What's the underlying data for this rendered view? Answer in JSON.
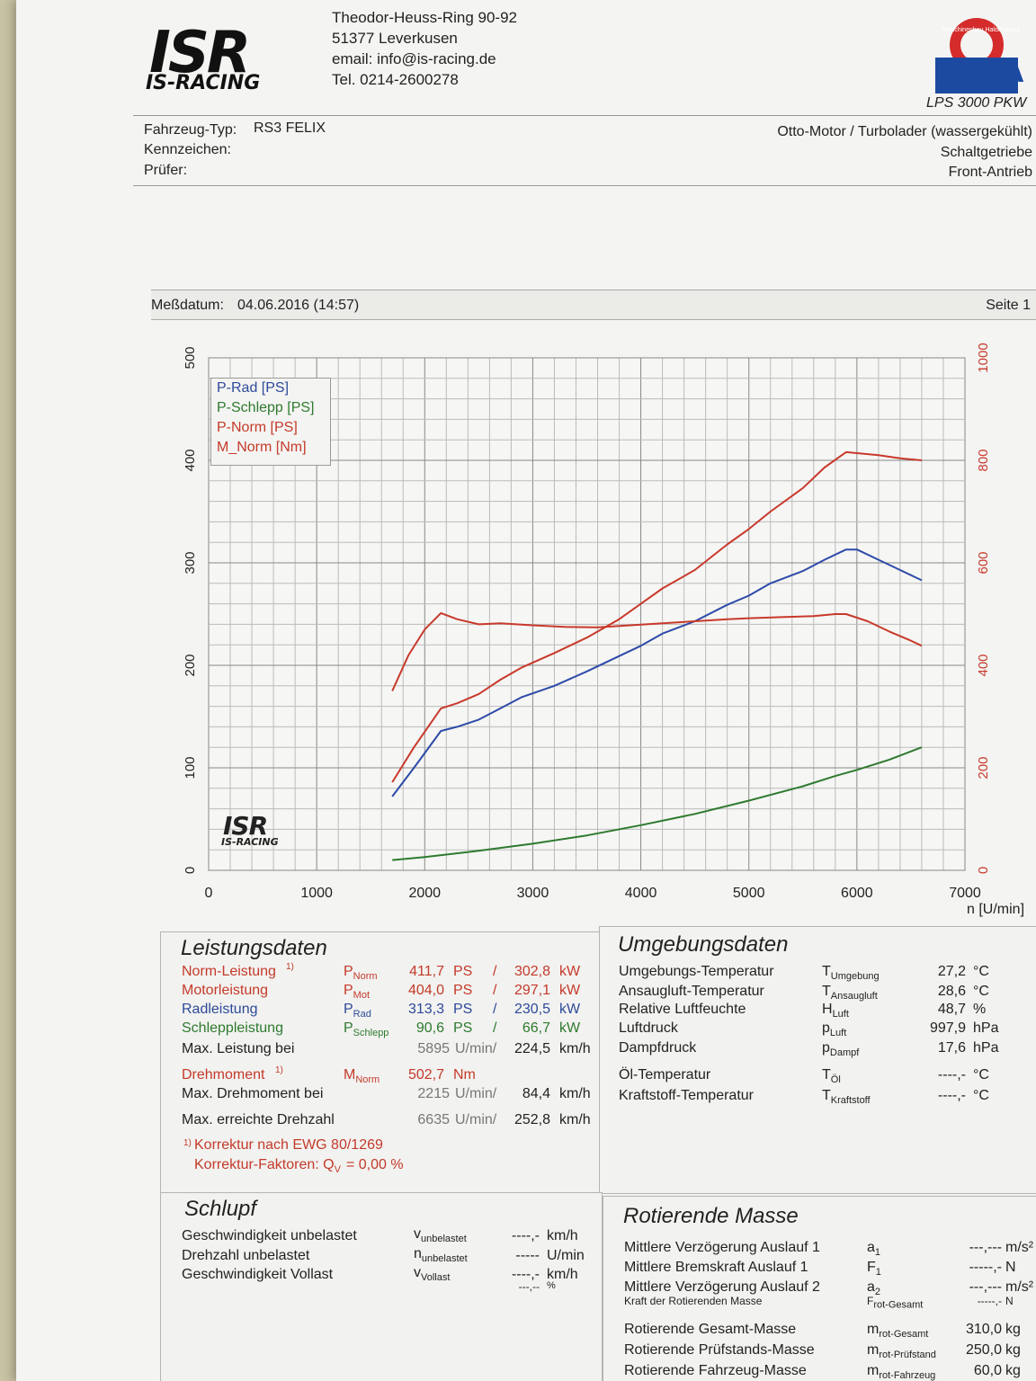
{
  "header": {
    "logo_text": "ISR",
    "logo_sub": "IS-RACING",
    "address": [
      "Theodor-Heuss-Ring 90-92",
      "51377 Leverkusen",
      "email: info@is-racing.de",
      "Tel. 0214-2600278"
    ],
    "maha_ring": "Maschinenbau Haldenwang",
    "maha_logo": "MAHA",
    "model": "LPS 3000 PKW"
  },
  "vehicle": {
    "type_label": "Fahrzeug-Typ:",
    "type_value": "RS3 FELIX",
    "plate_label": "Kennzeichen:",
    "tester_label": "Prüfer:",
    "engine": "Otto-Motor / Turbolader (wassergekühlt)",
    "gearbox": "Schaltgetriebe",
    "drive": "Front-Antrieb"
  },
  "measure": {
    "date_label": "Meßdatum:",
    "date_value": "04.06.2016 (14:57)",
    "page": "Seite 1"
  },
  "chart_data": {
    "type": "line",
    "xlim": [
      0,
      7000
    ],
    "ylim_left": [
      0,
      500
    ],
    "ylim_right": [
      0,
      1000
    ],
    "xlabel": "n [U/min]",
    "x_ticks": [
      "0",
      "1000",
      "2000",
      "3000",
      "4000",
      "5000",
      "6000",
      "7000"
    ],
    "y_left_ticks": [
      "0",
      "100",
      "200",
      "300",
      "400",
      "500"
    ],
    "y_right_ticks": [
      "0",
      "200",
      "400",
      "600",
      "800",
      "1000"
    ],
    "legend": [
      "P-Rad [PS]",
      "P-Schlepp [PS]",
      "P-Norm [PS]",
      "M_Norm [Nm]"
    ],
    "grid": true,
    "colors": {
      "p_rad": "#2d4aa8",
      "p_schlepp": "#2e7a2e",
      "p_norm": "#c8392b",
      "m_norm": "#c8392b"
    },
    "series": [
      {
        "name": "P-Rad [PS]",
        "axis": "left",
        "points": [
          [
            1700,
            72
          ],
          [
            1900,
            100
          ],
          [
            2150,
            136
          ],
          [
            2300,
            140
          ],
          [
            2500,
            147
          ],
          [
            2700,
            158
          ],
          [
            2900,
            169
          ],
          [
            3200,
            180
          ],
          [
            3500,
            194
          ],
          [
            3800,
            209
          ],
          [
            4000,
            219
          ],
          [
            4200,
            231
          ],
          [
            4500,
            243
          ],
          [
            4800,
            259
          ],
          [
            5000,
            268
          ],
          [
            5200,
            280
          ],
          [
            5500,
            292
          ],
          [
            5700,
            303
          ],
          [
            5900,
            313
          ],
          [
            6000,
            313
          ],
          [
            6200,
            303
          ],
          [
            6400,
            293
          ],
          [
            6600,
            283
          ]
        ]
      },
      {
        "name": "P-Schlepp [PS]",
        "axis": "left",
        "points": [
          [
            1700,
            10
          ],
          [
            2000,
            13
          ],
          [
            2500,
            19
          ],
          [
            3000,
            26
          ],
          [
            3500,
            34
          ],
          [
            4000,
            44
          ],
          [
            4500,
            55
          ],
          [
            5000,
            68
          ],
          [
            5500,
            82
          ],
          [
            5800,
            92
          ],
          [
            6000,
            98
          ],
          [
            6300,
            108
          ],
          [
            6600,
            120
          ]
        ]
      },
      {
        "name": "P-Norm [PS]",
        "axis": "left",
        "points": [
          [
            1700,
            86
          ],
          [
            1900,
            120
          ],
          [
            2150,
            158
          ],
          [
            2300,
            163
          ],
          [
            2500,
            172
          ],
          [
            2700,
            186
          ],
          [
            2900,
            198
          ],
          [
            3200,
            212
          ],
          [
            3500,
            227
          ],
          [
            3800,
            245
          ],
          [
            4000,
            260
          ],
          [
            4200,
            275
          ],
          [
            4500,
            293
          ],
          [
            4800,
            318
          ],
          [
            5000,
            333
          ],
          [
            5200,
            350
          ],
          [
            5500,
            373
          ],
          [
            5700,
            393
          ],
          [
            5900,
            408
          ],
          [
            6000,
            407
          ],
          [
            6200,
            405
          ],
          [
            6400,
            402
          ],
          [
            6600,
            400
          ]
        ]
      },
      {
        "name": "M_Norm [Nm]",
        "axis": "right",
        "points": [
          [
            1700,
            350
          ],
          [
            1850,
            420
          ],
          [
            2000,
            470
          ],
          [
            2150,
            502
          ],
          [
            2300,
            490
          ],
          [
            2500,
            480
          ],
          [
            2700,
            482
          ],
          [
            3000,
            478
          ],
          [
            3300,
            475
          ],
          [
            3600,
            474
          ],
          [
            3900,
            478
          ],
          [
            4200,
            482
          ],
          [
            4500,
            486
          ],
          [
            4800,
            490
          ],
          [
            5000,
            492
          ],
          [
            5300,
            494
          ],
          [
            5600,
            496
          ],
          [
            5800,
            500
          ],
          [
            5900,
            500
          ],
          [
            6100,
            486
          ],
          [
            6300,
            466
          ],
          [
            6500,
            448
          ],
          [
            6600,
            438
          ]
        ]
      }
    ]
  },
  "leistung": {
    "title": "Leistungsdaten",
    "rows": [
      {
        "label": "Norm-Leistung",
        "note": "1)",
        "sym": "P",
        "sub": "Norm",
        "v1": "411,7",
        "u1": "PS",
        "v2": "302,8",
        "u2": "kW"
      },
      {
        "label": "Motorleistung",
        "note": "",
        "sym": "P",
        "sub": "Mot",
        "v1": "404,0",
        "u1": "PS",
        "v2": "297,1",
        "u2": "kW"
      },
      {
        "label": "Radleistung",
        "note": "",
        "sym": "P",
        "sub": "Rad",
        "v1": "313,3",
        "u1": "PS",
        "v2": "230,5",
        "u2": "kW"
      },
      {
        "label": "Schleppleistung",
        "note": "",
        "sym": "P",
        "sub": "Schlepp",
        "v1": "90,6",
        "u1": "PS",
        "v2": "66,7",
        "u2": "kW"
      }
    ],
    "max_power_label": "Max. Leistung bei",
    "max_power_rpm": "5895",
    "rpm_unit": "U/min/",
    "max_power_speed": "224,5",
    "speed_unit": "km/h",
    "torque_label": "Drehmoment",
    "torque_note": "1)",
    "torque_sym": "M",
    "torque_sub": "Norm",
    "torque_value": "502,7",
    "torque_unit": "Nm",
    "max_torque_label": "Max. Drehmoment bei",
    "max_torque_rpm": "2215",
    "max_torque_speed": "84,4",
    "max_rpm_label": "Max. erreichte Drehzahl",
    "max_rpm": "6635",
    "max_rpm_speed": "252,8",
    "correction_1": "Korrektur nach EWG 80/1269",
    "correction_1_note": "1)",
    "correction_2": "Korrektur-Faktoren: Q",
    "correction_2_sub": "V",
    "correction_2_value": "= 0,00 %"
  },
  "umgebung": {
    "title": "Umgebungsdaten",
    "rows": [
      {
        "label": "Umgebungs-Temperatur",
        "sym": "T",
        "sub": "Umgebung",
        "value": "27,2",
        "unit": "°C"
      },
      {
        "label": "Ansaugluft-Temperatur",
        "sym": "T",
        "sub": "Ansaugluft",
        "value": "28,6",
        "unit": "°C"
      },
      {
        "label": "Relative Luftfeuchte",
        "sym": "H",
        "sub": "Luft",
        "value": "48,7",
        "unit": "%"
      },
      {
        "label": "Luftdruck",
        "sym": "p",
        "sub": "Luft",
        "value": "997,9",
        "unit": "hPa"
      },
      {
        "label": "Dampfdruck",
        "sym": "p",
        "sub": "Dampf",
        "value": "17,6",
        "unit": "hPa"
      },
      {
        "label": "Öl-Temperatur",
        "sym": "T",
        "sub": "Öl",
        "value": "----,-",
        "unit": "°C"
      },
      {
        "label": "Kraftstoff-Temperatur",
        "sym": "T",
        "sub": "Kraftstoff",
        "value": "----,-",
        "unit": "°C"
      }
    ]
  },
  "schlupf": {
    "title": "Schlupf",
    "rows": [
      {
        "label": "Geschwindigkeit unbelastet",
        "sym": "v",
        "sub": "unbelastet",
        "value": "----,-",
        "unit": "km/h"
      },
      {
        "label": "Drehzahl unbelastet",
        "sym": "n",
        "sub": "unbelastet",
        "value": "-----",
        "unit": "U/min"
      },
      {
        "label": "Geschwindigkeit Vollast",
        "sym": "v",
        "sub": "Vollast",
        "value": "----,-",
        "unit": "km/h"
      },
      {
        "label": "Schlupf",
        "sym": "",
        "sub": "",
        "value": "---,--",
        "unit": "%"
      }
    ]
  },
  "masse": {
    "title": "Rotierende Masse",
    "rows": [
      {
        "label": "Mittlere Verzögerung Auslauf 1",
        "sym": "a",
        "sub": "1",
        "value": "---,---",
        "unit": "m/s²"
      },
      {
        "label": "Mittlere Bremskraft Auslauf 1",
        "sym": "F",
        "sub": "1",
        "value": "-----,-",
        "unit": "N"
      },
      {
        "label": "Mittlere Verzögerung Auslauf 2",
        "sym": "a",
        "sub": "2",
        "value": "---,---",
        "unit": "m/s²"
      },
      {
        "label": "Kraft der Rotierenden Masse",
        "sym": "F",
        "sub": "rot-Gesamt",
        "value": "-----,-",
        "unit": "N"
      },
      {
        "label": "Rotierende Gesamt-Masse",
        "sym": "m",
        "sub": "rot-Gesamt",
        "value": "310,0",
        "unit": "kg"
      },
      {
        "label": "Rotierende Prüfstands-Masse",
        "sym": "m",
        "sub": "rot-Prüfstand",
        "value": "250,0",
        "unit": "kg"
      },
      {
        "label": "Rotierende Fahrzeug-Masse",
        "sym": "m",
        "sub": "rot-Fahrzeug",
        "value": "60,0",
        "unit": "kg"
      }
    ]
  }
}
